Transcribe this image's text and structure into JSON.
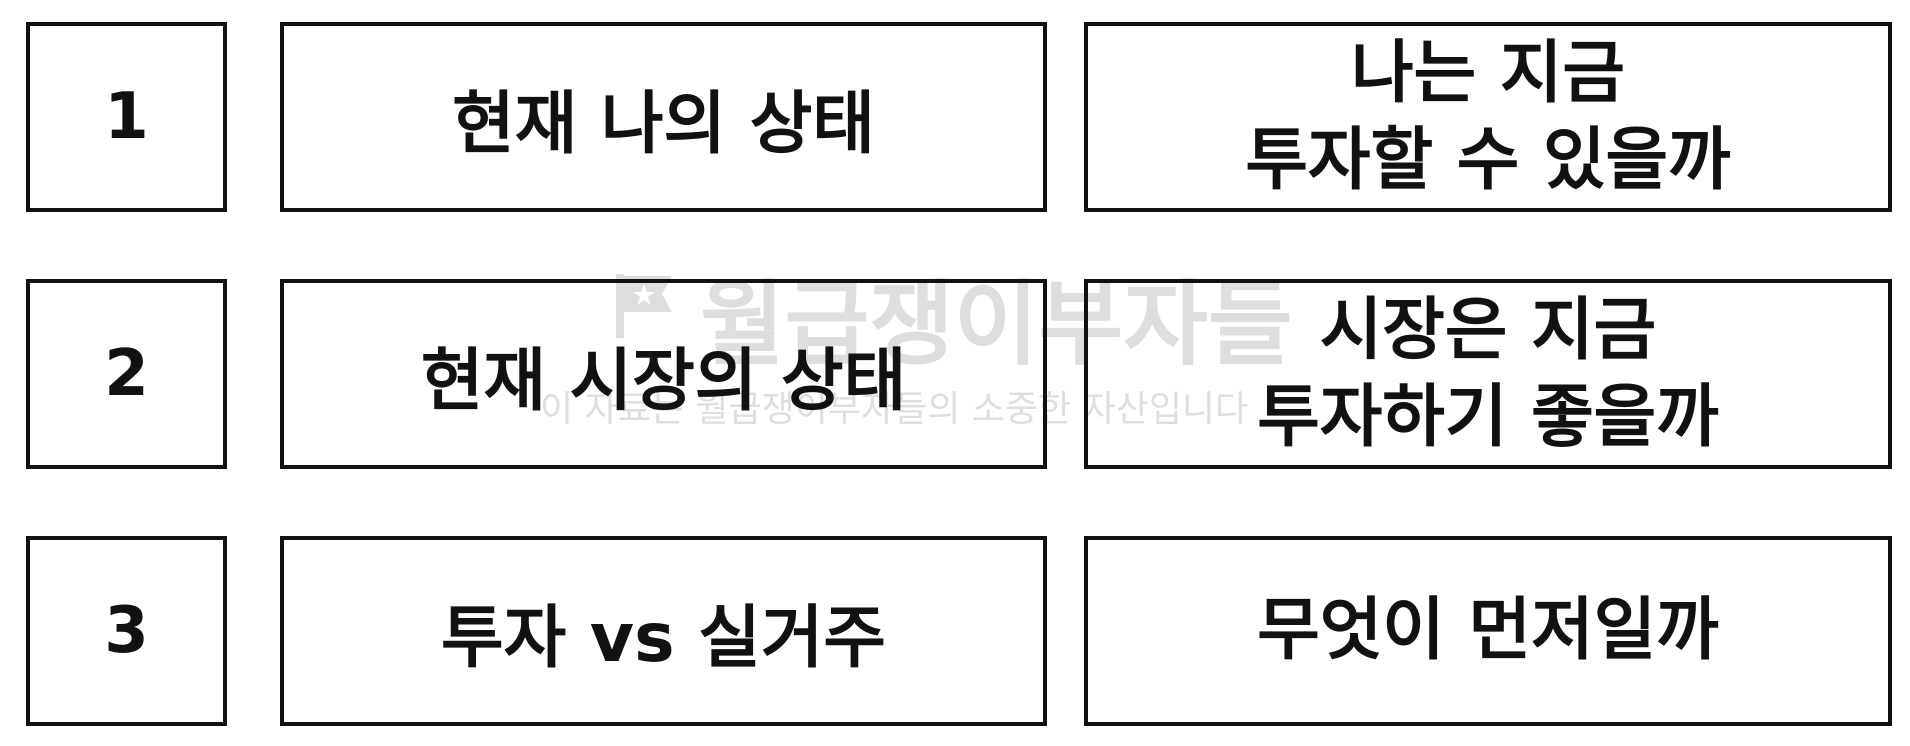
{
  "rows": [
    {
      "number": "1",
      "topic": "현재 나의 상태",
      "question_lines": [
        "나는 지금",
        "투자할 수 있을까"
      ]
    },
    {
      "number": "2",
      "topic": "현재 시장의 상태",
      "question_lines": [
        "시장은 지금",
        "투자하기 좋을까"
      ]
    },
    {
      "number": "3",
      "topic": "투자 vs 실거주",
      "question_lines": [
        "무엇이 먼저일까"
      ]
    }
  ],
  "watermark": {
    "title": "월급쟁이부자들",
    "subtitle": "이 자료는 월급쟁이부자들의 소중한 자산입니다"
  },
  "colors": {
    "border": "#111111",
    "text": "#111111",
    "watermark": "#c4c4c4",
    "background": "#ffffff"
  }
}
